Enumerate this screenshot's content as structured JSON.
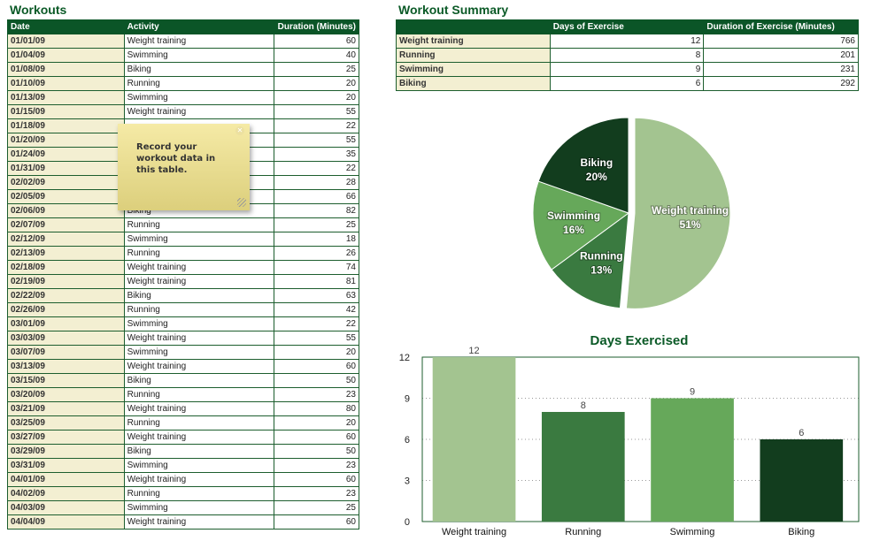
{
  "workouts": {
    "title": "Workouts",
    "headers": [
      "Date",
      "Activity",
      "Duration (Minutes)"
    ],
    "rows": [
      [
        "01/01/09",
        "Weight training",
        "60"
      ],
      [
        "01/04/09",
        "Swimming",
        "40"
      ],
      [
        "01/08/09",
        "Biking",
        "25"
      ],
      [
        "01/10/09",
        "Running",
        "20"
      ],
      [
        "01/13/09",
        "Swimming",
        "20"
      ],
      [
        "01/15/09",
        "Weight training",
        "55"
      ],
      [
        "01/18/09",
        "",
        "22"
      ],
      [
        "01/20/09",
        "",
        "55"
      ],
      [
        "01/24/09",
        "",
        "35"
      ],
      [
        "01/31/09",
        "",
        "22"
      ],
      [
        "02/02/09",
        "",
        "28"
      ],
      [
        "02/05/09",
        "",
        "66"
      ],
      [
        "02/06/09",
        "Biking",
        "82"
      ],
      [
        "02/07/09",
        "Running",
        "25"
      ],
      [
        "02/12/09",
        "Swimming",
        "18"
      ],
      [
        "02/13/09",
        "Running",
        "26"
      ],
      [
        "02/18/09",
        "Weight training",
        "74"
      ],
      [
        "02/19/09",
        "Weight training",
        "81"
      ],
      [
        "02/22/09",
        "Biking",
        "63"
      ],
      [
        "02/26/09",
        "Running",
        "42"
      ],
      [
        "03/01/09",
        "Swimming",
        "22"
      ],
      [
        "03/03/09",
        "Weight training",
        "55"
      ],
      [
        "03/07/09",
        "Swimming",
        "20"
      ],
      [
        "03/13/09",
        "Weight training",
        "60"
      ],
      [
        "03/15/09",
        "Biking",
        "50"
      ],
      [
        "03/20/09",
        "Running",
        "23"
      ],
      [
        "03/21/09",
        "Weight training",
        "80"
      ],
      [
        "03/25/09",
        "Running",
        "20"
      ],
      [
        "03/27/09",
        "Weight training",
        "60"
      ],
      [
        "03/29/09",
        "Biking",
        "50"
      ],
      [
        "03/31/09",
        "Swimming",
        "23"
      ],
      [
        "04/01/09",
        "Weight training",
        "60"
      ],
      [
        "04/02/09",
        "Running",
        "23"
      ],
      [
        "04/03/09",
        "Swimming",
        "25"
      ],
      [
        "04/04/09",
        "Weight training",
        "60"
      ]
    ]
  },
  "note": {
    "text": "Record your workout data in this table."
  },
  "summary": {
    "title": "Workout Summary",
    "headers": [
      "",
      "Days of Exercise",
      "Duration of Exercise (Minutes)"
    ],
    "rows": [
      [
        "Weight training",
        "12",
        "766"
      ],
      [
        "Running",
        "8",
        "201"
      ],
      [
        "Swimming",
        "9",
        "231"
      ],
      [
        "Biking",
        "6",
        "292"
      ]
    ]
  },
  "chart_data": [
    {
      "type": "pie",
      "slices": [
        {
          "label": "Weight training",
          "pct": "51%",
          "value": 766,
          "color": "#a3c490",
          "text": "#fff"
        },
        {
          "label": "Running",
          "pct": "13%",
          "value": 201,
          "color": "#3a7a40",
          "text": "#fff"
        },
        {
          "label": "Swimming",
          "pct": "16%",
          "value": 231,
          "color": "#66a85a",
          "text": "#fff"
        },
        {
          "label": "Biking",
          "pct": "20%",
          "value": 292,
          "color": "#123d1e",
          "text": "#fff"
        }
      ]
    },
    {
      "type": "bar",
      "title": "Days Exercised",
      "categories": [
        "Weight training",
        "Running",
        "Swimming",
        "Biking"
      ],
      "values": [
        12,
        8,
        9,
        6
      ],
      "colors": [
        "#a3c490",
        "#3a7a40",
        "#66a85a",
        "#123d1e"
      ],
      "ylim": [
        0,
        12
      ],
      "yticks": [
        0,
        3,
        6,
        9,
        12
      ]
    }
  ]
}
